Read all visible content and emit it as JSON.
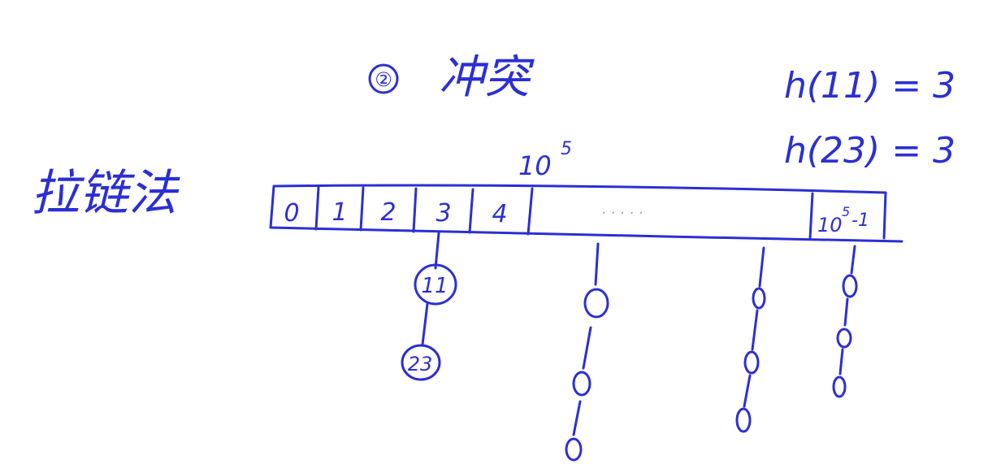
{
  "heading": {
    "number": "②",
    "text": "冲突"
  },
  "method_label": "拉链法",
  "hash_examples": [
    "h(11) = 3",
    "h(23) = 3"
  ],
  "top_annotation": {
    "base": "10",
    "exp": "5"
  },
  "array": {
    "cells": [
      "0",
      "1",
      "2",
      "3",
      "4"
    ],
    "ellipsis": "· · · · ·",
    "last_cell": {
      "base": "10",
      "exp": "5",
      "suffix": "-1"
    }
  },
  "chains": [
    {
      "bucket": "3",
      "nodes": [
        "11",
        "23"
      ]
    },
    {
      "bucket": "",
      "nodes": [
        "",
        "",
        ""
      ]
    },
    {
      "bucket": "",
      "nodes": [
        "",
        "",
        ""
      ]
    },
    {
      "bucket": "10^5-1",
      "nodes": [
        "",
        "",
        ""
      ]
    }
  ],
  "ink_color": "#2b2fd4"
}
